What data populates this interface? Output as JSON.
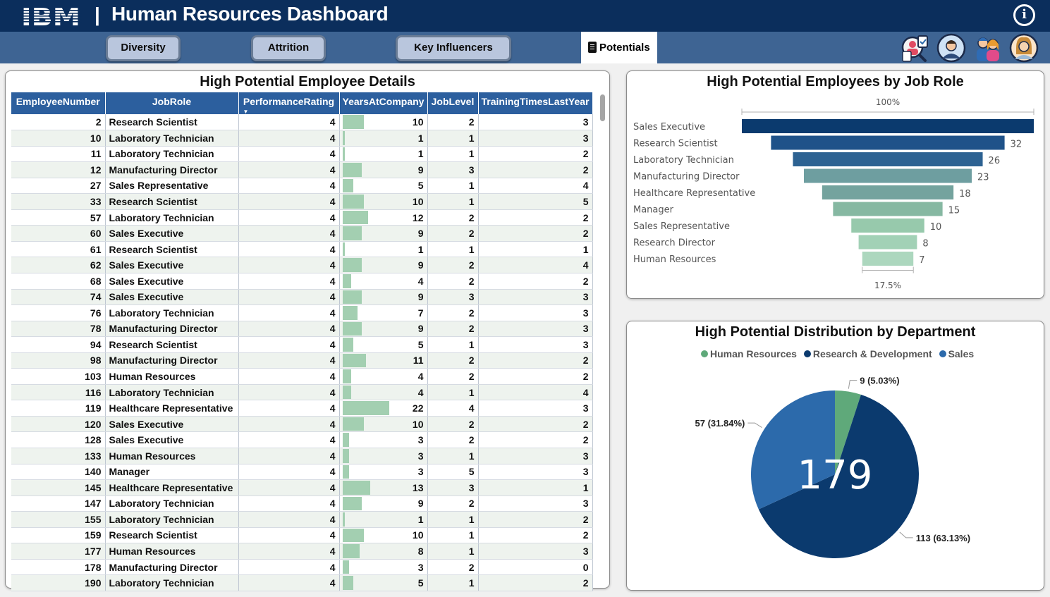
{
  "header": {
    "logo_text": "IBM",
    "separator": "|",
    "title": "Human Resources Dashboard",
    "info_icon": "i"
  },
  "tabs": [
    {
      "label": "Diversity"
    },
    {
      "label": "Attrition"
    },
    {
      "label": "Key Influencers"
    },
    {
      "label": "Potentials",
      "active": true
    }
  ],
  "avatars": [
    "recruiter-icon",
    "male-employee-icon",
    "team-icon",
    "female-employee-icon"
  ],
  "table": {
    "title": "High Potential Employee Details",
    "columns": [
      "EmployeeNumber",
      "JobRole",
      "PerformanceRating",
      "YearsAtCompany",
      "JobLevel",
      "TrainingTimesLastYear"
    ],
    "sorted_column": "PerformanceRating",
    "rows": [
      [
        "2",
        "Research Scientist",
        "4",
        "10",
        "2",
        "3"
      ],
      [
        "10",
        "Laboratory Technician",
        "4",
        "1",
        "1",
        "3"
      ],
      [
        "11",
        "Laboratory Technician",
        "4",
        "1",
        "1",
        "2"
      ],
      [
        "12",
        "Manufacturing Director",
        "4",
        "9",
        "3",
        "2"
      ],
      [
        "27",
        "Sales Representative",
        "4",
        "5",
        "1",
        "4"
      ],
      [
        "33",
        "Research Scientist",
        "4",
        "10",
        "1",
        "5"
      ],
      [
        "57",
        "Laboratory Technician",
        "4",
        "12",
        "2",
        "2"
      ],
      [
        "60",
        "Sales Executive",
        "4",
        "9",
        "2",
        "2"
      ],
      [
        "61",
        "Research Scientist",
        "4",
        "1",
        "1",
        "1"
      ],
      [
        "62",
        "Sales Executive",
        "4",
        "9",
        "2",
        "4"
      ],
      [
        "68",
        "Sales Executive",
        "4",
        "4",
        "2",
        "2"
      ],
      [
        "74",
        "Sales Executive",
        "4",
        "9",
        "3",
        "3"
      ],
      [
        "76",
        "Laboratory Technician",
        "4",
        "7",
        "2",
        "3"
      ],
      [
        "78",
        "Manufacturing Director",
        "4",
        "9",
        "2",
        "3"
      ],
      [
        "94",
        "Research Scientist",
        "4",
        "5",
        "1",
        "3"
      ],
      [
        "98",
        "Manufacturing Director",
        "4",
        "11",
        "2",
        "2"
      ],
      [
        "103",
        "Human Resources",
        "4",
        "4",
        "2",
        "2"
      ],
      [
        "116",
        "Laboratory Technician",
        "4",
        "4",
        "1",
        "4"
      ],
      [
        "119",
        "Healthcare Representative",
        "4",
        "22",
        "4",
        "3"
      ],
      [
        "120",
        "Sales Executive",
        "4",
        "10",
        "2",
        "2"
      ],
      [
        "128",
        "Sales Executive",
        "4",
        "3",
        "2",
        "2"
      ],
      [
        "133",
        "Human Resources",
        "4",
        "3",
        "1",
        "3"
      ],
      [
        "140",
        "Manager",
        "4",
        "3",
        "5",
        "3"
      ],
      [
        "145",
        "Healthcare Representative",
        "4",
        "13",
        "3",
        "1"
      ],
      [
        "147",
        "Laboratory Technician",
        "4",
        "9",
        "2",
        "3"
      ],
      [
        "155",
        "Laboratory Technician",
        "4",
        "1",
        "1",
        "2"
      ],
      [
        "159",
        "Research Scientist",
        "4",
        "10",
        "1",
        "2"
      ],
      [
        "177",
        "Human Resources",
        "4",
        "8",
        "1",
        "3"
      ],
      [
        "178",
        "Manufacturing Director",
        "4",
        "3",
        "2",
        "0"
      ],
      [
        "190",
        "Laboratory Technician",
        "4",
        "5",
        "1",
        "2"
      ]
    ]
  },
  "funnel": {
    "title": "High Potential Employees by Job Role",
    "top_label": "100%",
    "bottom_label": "17.5%"
  },
  "pie": {
    "title": "High Potential Distribution by Department",
    "center_value": "179"
  },
  "chart_data": [
    {
      "type": "bar",
      "title": "High Potential Employees by Job Role",
      "categories": [
        "Sales Executive",
        "Research Scientist",
        "Laboratory Technician",
        "Manufacturing Director",
        "Healthcare Representative",
        "Manager",
        "Sales Representative",
        "Research Director",
        "Human Resources"
      ],
      "values": [
        40,
        32,
        26,
        23,
        18,
        15,
        10,
        8,
        7
      ],
      "value_labels": [
        "",
        "32",
        "26",
        "23",
        "18",
        "15",
        "10",
        "8",
        "7"
      ],
      "colors": [
        "#0b3a6e",
        "#1f5289",
        "#2d6292",
        "#6e9ea0",
        "#74a39e",
        "#86b8a2",
        "#97c9ac",
        "#a2d1b6",
        "#acd7be"
      ]
    },
    {
      "type": "pie",
      "title": "High Potential Distribution by Department",
      "legend": [
        "Human Resources",
        "Research & Development",
        "Sales"
      ],
      "legend_position": "top",
      "values": [
        9,
        113,
        57
      ],
      "labels": [
        "9 (5.03%)",
        "113 (63.13%)",
        "57 (31.84%)"
      ],
      "colors": [
        "#5fa97a",
        "#0b3a6e",
        "#2c6aab"
      ]
    }
  ]
}
